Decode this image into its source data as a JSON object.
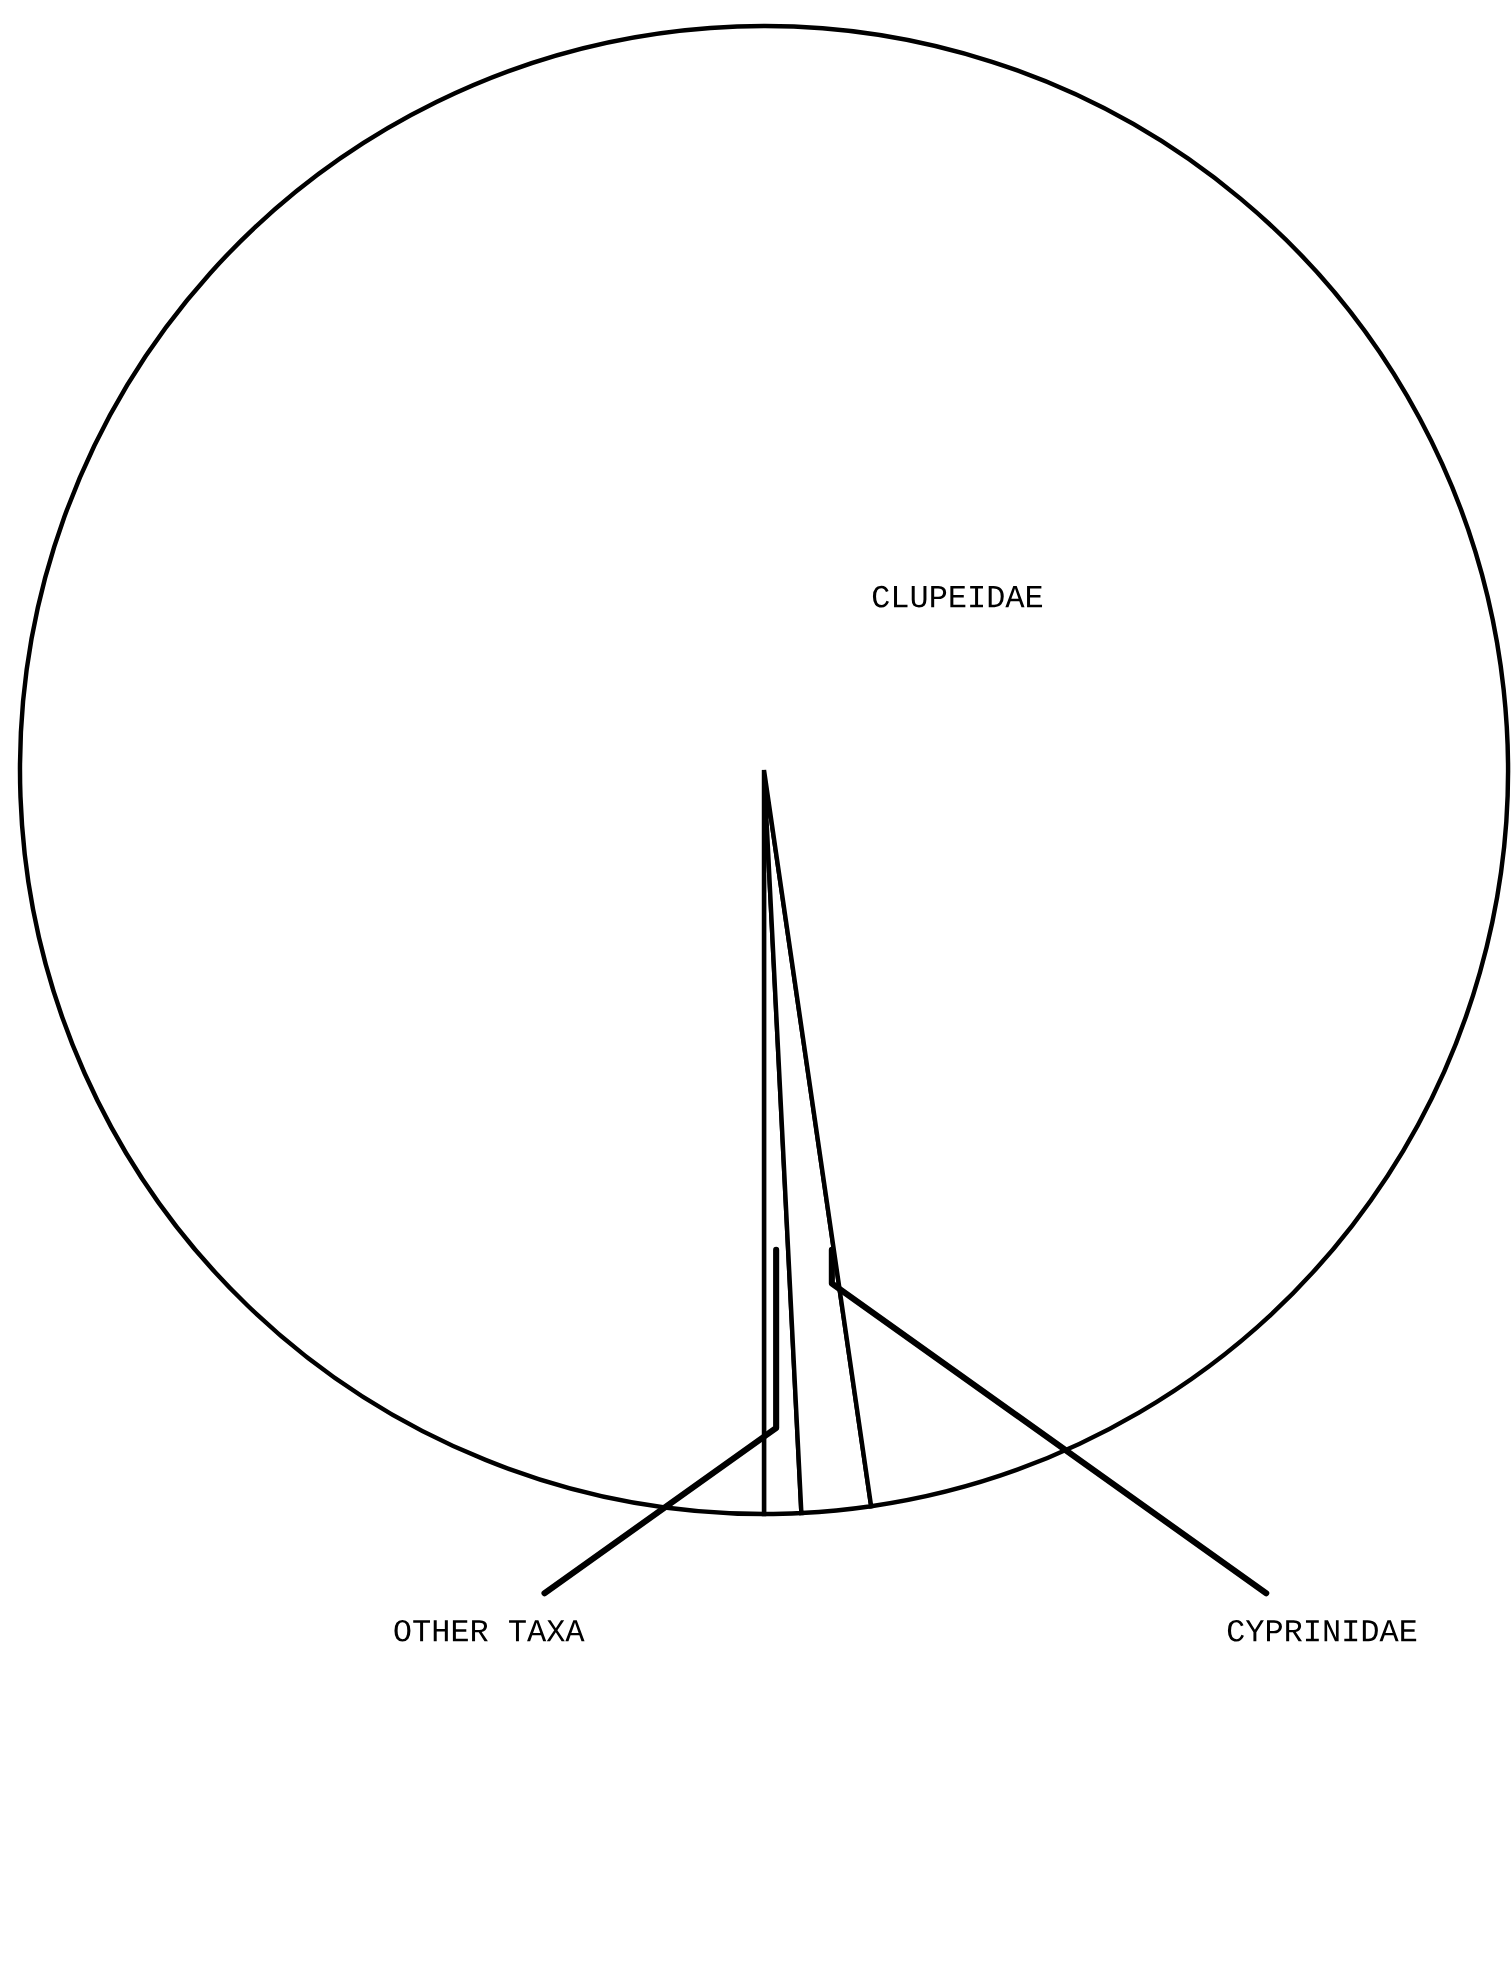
{
  "chart_data": {
    "type": "pie",
    "categories": [
      "OTHER TAXA",
      "CYPRINIDAE",
      "CLUPEIDAE"
    ],
    "values": [
      0.8,
      1.5,
      97.7
    ],
    "colors": [
      "#ffffff",
      "#ffffff",
      "#ffffff"
    ]
  }
}
